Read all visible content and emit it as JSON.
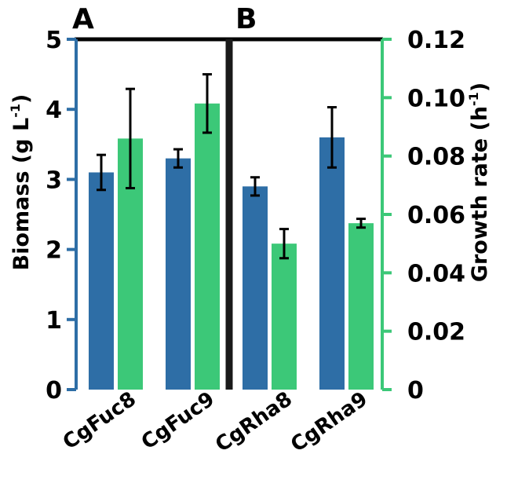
{
  "chart_data": {
    "type": "bar",
    "categories": [
      "CgFuc8",
      "CgFuc9",
      "CgRha8",
      "CgRha9"
    ],
    "panels": [
      "A",
      "B"
    ],
    "ylabel": {
      "main": "Biomass (g L",
      "sup": "-1",
      "end": ")"
    },
    "y2label": {
      "main": "Growth rate (h",
      "sup": "-1",
      "end": ")"
    },
    "ylim": [
      0,
      5
    ],
    "y2lim": [
      0,
      0.12
    ],
    "yticks": [
      "0",
      "1",
      "2",
      "3",
      "4",
      "5"
    ],
    "y2ticks": [
      "0",
      "0.02",
      "0.04",
      "0.06",
      "0.08",
      "0.10",
      "0.12"
    ],
    "series": [
      {
        "axis": "left",
        "color": "#2e6ea6",
        "values": [
          3.1,
          3.3,
          2.9,
          3.6
        ],
        "errors": [
          0.25,
          0.13,
          0.13,
          0.43
        ]
      },
      {
        "axis": "right",
        "color": "#3cc878",
        "values": [
          0.086,
          0.098,
          0.05,
          0.057
        ],
        "errors": [
          0.017,
          0.01,
          0.005,
          0.0015
        ]
      }
    ],
    "colors": {
      "left_axis": "#2e6ea6",
      "right_axis": "#3cc878",
      "divider": "#1a1a1a"
    }
  }
}
